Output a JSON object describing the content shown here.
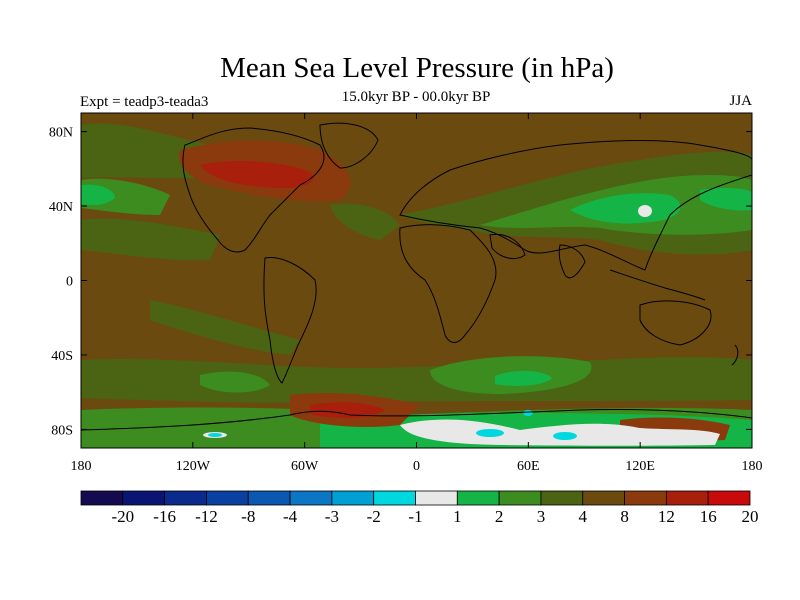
{
  "header": {
    "title": "Mean Sea Level Pressure (in hPa)",
    "experiment": "Expt = teadp3-teada3",
    "subtitle": "15.0kyr BP - 00.0kyr BP",
    "season": "JJA"
  },
  "map": {
    "lat_labels": [
      "80N",
      "40N",
      "0",
      "40S",
      "80S"
    ],
    "lat_values": [
      80,
      40,
      0,
      -40,
      -80
    ],
    "lon_labels": [
      "180",
      "120W",
      "60W",
      "0",
      "60E",
      "120E",
      "180"
    ],
    "lon_values": [
      -180,
      -120,
      -60,
      0,
      60,
      120,
      180
    ],
    "lon_range": [
      -180,
      180
    ],
    "lat_range": [
      -90,
      90
    ],
    "background_color": "#6b4a10",
    "coastline_color": "#000000"
  },
  "colorbar": {
    "labels": [
      "-20",
      "-16",
      "-12",
      "-8",
      "-4",
      "-3",
      "-2",
      "-1",
      "1",
      "2",
      "3",
      "4",
      "8",
      "12",
      "16",
      "20"
    ],
    "colors": [
      "#140a50",
      "#0a1472",
      "#0a2a8c",
      "#0a40a0",
      "#0a58b0",
      "#0a76c4",
      "#00a0d4",
      "#00d8e0",
      "#e8e8e8",
      "#14b446",
      "#3c8c20",
      "#4a6414",
      "#6b4a10",
      "#8a3a0c",
      "#a8200c",
      "#c80a0a"
    ]
  }
}
